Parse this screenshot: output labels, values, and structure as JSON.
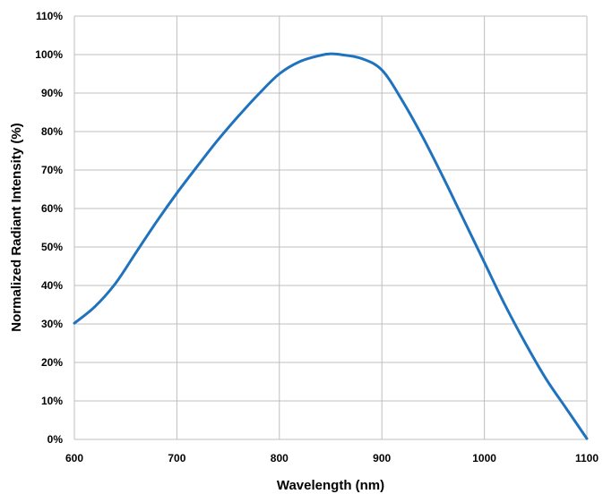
{
  "chart_data": {
    "type": "line",
    "title": "",
    "xlabel": "Wavelength (nm)",
    "ylabel": "Normalized Radiant Intensity (%)",
    "xlim": [
      600,
      1100
    ],
    "ylim": [
      0,
      110
    ],
    "x_ticks": [
      600,
      700,
      800,
      900,
      1000,
      1100
    ],
    "x_tick_labels": [
      "600",
      "700",
      "800",
      "900",
      "1000",
      "1100"
    ],
    "y_ticks": [
      0,
      10,
      20,
      30,
      40,
      50,
      60,
      70,
      80,
      90,
      100,
      110
    ],
    "y_tick_labels": [
      "0%",
      "10%",
      "20%",
      "30%",
      "40%",
      "50%",
      "60%",
      "70%",
      "80%",
      "90%",
      "100%",
      "110%"
    ],
    "grid": true,
    "legend": "none",
    "line_color": "#1f72bd",
    "series": [
      {
        "x": [
          600,
          620,
          640,
          660,
          680,
          700,
          720,
          740,
          760,
          780,
          800,
          820,
          840,
          850,
          860,
          880,
          900,
          920,
          940,
          960,
          980,
          1000,
          1020,
          1040,
          1060,
          1080,
          1100
        ],
        "values": [
          30.2,
          34.5,
          40.5,
          48.5,
          56.5,
          64.0,
          71.0,
          77.8,
          84.0,
          89.8,
          95.0,
          98.2,
          99.8,
          100.2,
          100.0,
          99.0,
          96.0,
          88.0,
          78.5,
          68.0,
          57.0,
          46.0,
          35.0,
          25.0,
          15.8,
          8.0,
          0.2
        ]
      }
    ]
  }
}
